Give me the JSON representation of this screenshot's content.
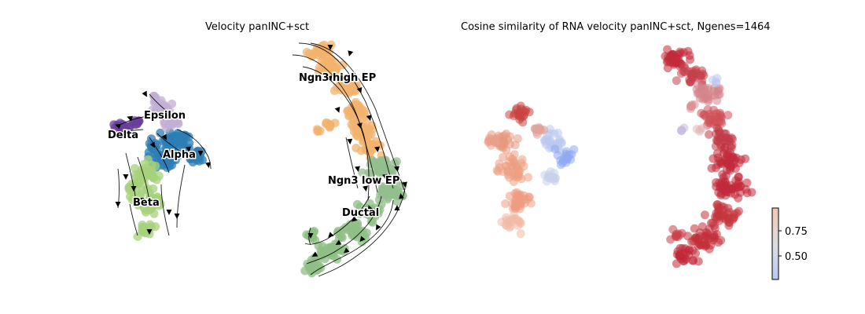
{
  "chart_data": [
    {
      "type": "scatter",
      "title": "Velocity panINC+sct",
      "xlabel": "",
      "ylabel": "",
      "grid": false,
      "point_colors": {
        "Ngn3 high EP": "#f2b36d",
        "Ngn3 low EP": "#93bd8e",
        "Ductal": "#8fbf86",
        "Alpha": "#2d7eb5",
        "Beta": "#a7d27c",
        "Delta": "#6a3d9a",
        "Epsilon": "#c3aed6"
      },
      "cluster_labels": [
        {
          "text": "Epsilon"
        },
        {
          "text": "Delta"
        },
        {
          "text": "Alpha"
        },
        {
          "text": "Beta"
        },
        {
          "text": "Ngn3 high EP"
        },
        {
          "text": "Ngn3 low EP"
        },
        {
          "text": "Ductal"
        }
      ]
    },
    {
      "type": "scatter",
      "title": "Cosine similarity of RNA velocity panINC+sct, Ngenes=1464",
      "xlabel": "",
      "ylabel": "",
      "grid": false,
      "colormap": "coolwarm",
      "colorbar": {
        "range": [
          0.3,
          0.98
        ],
        "ticks": [
          0.75,
          0.5
        ],
        "tick_labels": [
          "0.75",
          "0.50"
        ]
      }
    }
  ]
}
